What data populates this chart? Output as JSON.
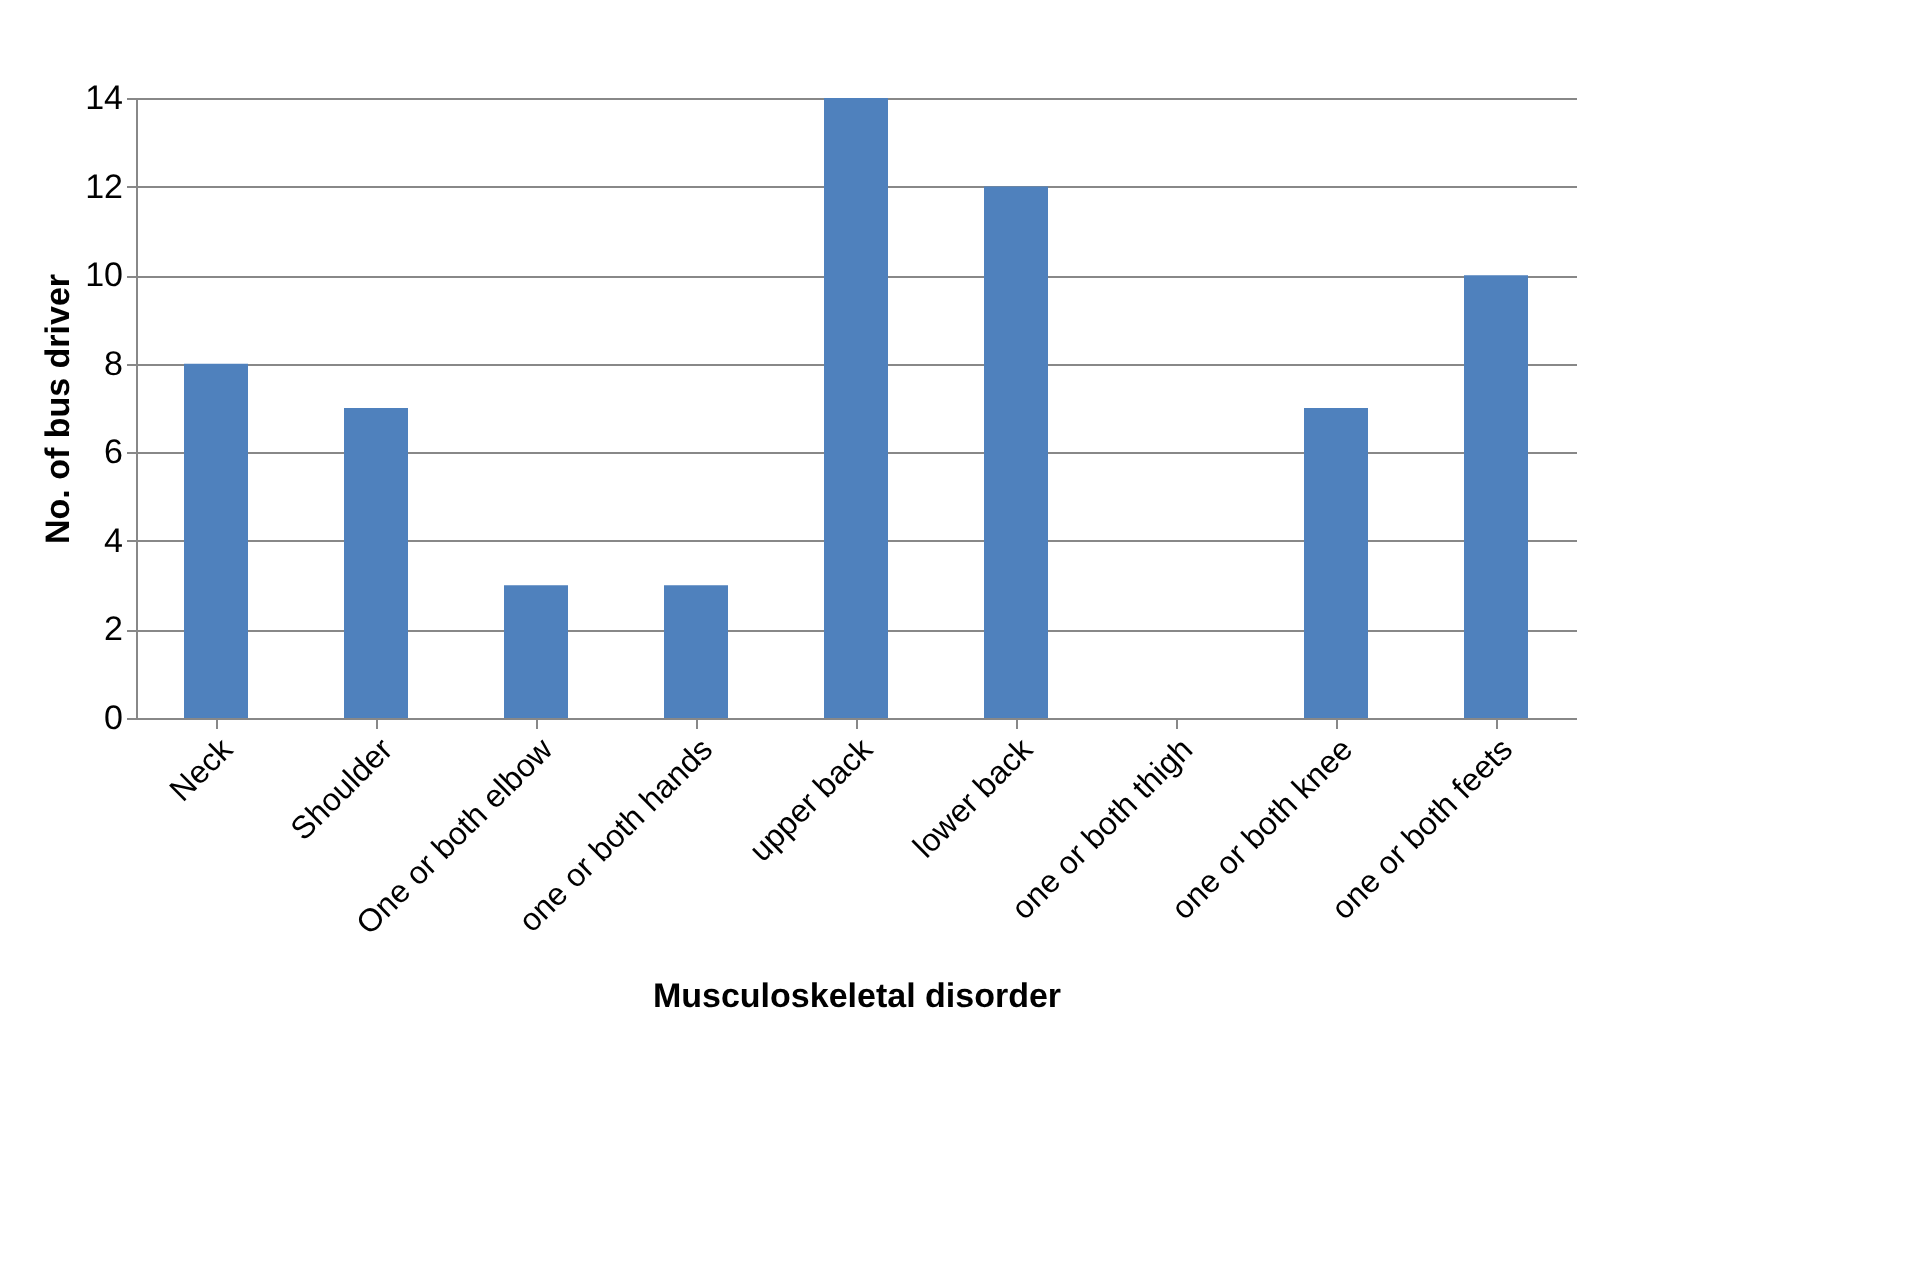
{
  "chart_data": {
    "type": "bar",
    "xlabel": "Musculoskeletal disorder",
    "ylabel": "No. of bus driver",
    "categories": [
      "Neck",
      "Shoulder",
      "One or both elbow",
      "one or both hands",
      "upper back",
      "lower back",
      "one or both thigh",
      "one or both knee",
      "one or both feets"
    ],
    "values": [
      8,
      7,
      3,
      3,
      14,
      12,
      0,
      7,
      10
    ],
    "color": "#4f81bd",
    "ylim": [
      0,
      14
    ],
    "yticks": [
      0,
      2,
      4,
      6,
      8,
      10,
      12,
      14
    ],
    "grid": "y"
  }
}
